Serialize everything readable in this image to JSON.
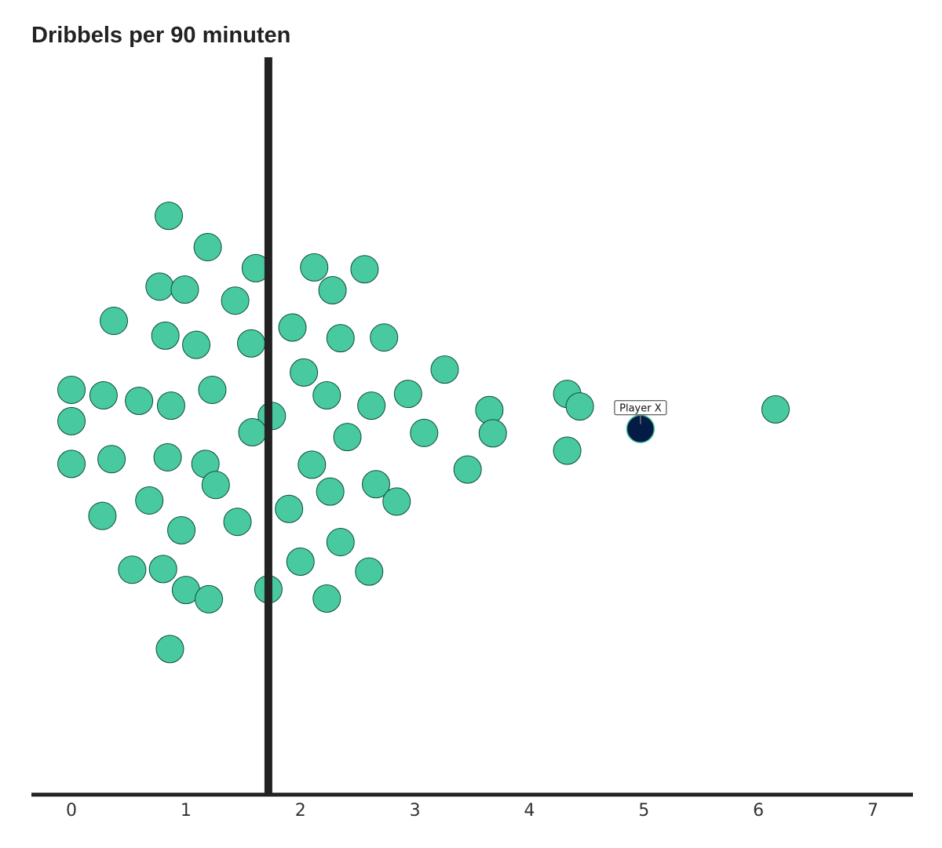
{
  "chart_data": {
    "type": "scatter",
    "title": "Dribbels per 90 minuten",
    "xlabel": "",
    "ylabel": "",
    "xlim": [
      -0.35,
      7.35
    ],
    "ylim": [
      -1.0,
      1.0
    ],
    "x_ticks": [
      0,
      1,
      2,
      3,
      4,
      5,
      6,
      7
    ],
    "grid": false,
    "reference_line": {
      "x": 1.72,
      "color": "#222222"
    },
    "colors": {
      "points": "#48c9a0",
      "point_stroke": "#0e4d3c",
      "highlight": "#041c45",
      "highlight_stroke": "#48c9a0",
      "axis": "#222222"
    },
    "series": [
      {
        "values": [
          {
            "x": 0.85,
            "y": 0.57
          },
          {
            "x": 1.19,
            "y": 0.485
          },
          {
            "x": 1.61,
            "y": 0.428
          },
          {
            "x": 2.12,
            "y": 0.43
          },
          {
            "x": 2.56,
            "y": 0.425
          },
          {
            "x": 0.77,
            "y": 0.378
          },
          {
            "x": 0.99,
            "y": 0.37
          },
          {
            "x": 2.28,
            "y": 0.368
          },
          {
            "x": 1.43,
            "y": 0.34
          },
          {
            "x": 0.37,
            "y": 0.285
          },
          {
            "x": 1.93,
            "y": 0.267
          },
          {
            "x": 0.82,
            "y": 0.245
          },
          {
            "x": 2.35,
            "y": 0.238
          },
          {
            "x": 2.73,
            "y": 0.24
          },
          {
            "x": 1.09,
            "y": 0.22
          },
          {
            "x": 1.57,
            "y": 0.224
          },
          {
            "x": 3.26,
            "y": 0.153
          },
          {
            "x": 2.03,
            "y": 0.145
          },
          {
            "x": 0.0,
            "y": 0.098
          },
          {
            "x": 1.23,
            "y": 0.098
          },
          {
            "x": 2.94,
            "y": 0.087
          },
          {
            "x": 4.33,
            "y": 0.087
          },
          {
            "x": 0.28,
            "y": 0.083
          },
          {
            "x": 2.23,
            "y": 0.083
          },
          {
            "x": 0.59,
            "y": 0.068
          },
          {
            "x": 4.44,
            "y": 0.053
          },
          {
            "x": 0.87,
            "y": 0.055
          },
          {
            "x": 2.62,
            "y": 0.055
          },
          {
            "x": 6.15,
            "y": 0.045
          },
          {
            "x": 3.65,
            "y": 0.043
          },
          {
            "x": 1.75,
            "y": 0.027
          },
          {
            "x": 0.0,
            "y": 0.013
          },
          {
            "x": 1.58,
            "y": -0.017
          },
          {
            "x": 3.08,
            "y": -0.019
          },
          {
            "x": 3.68,
            "y": -0.02
          },
          {
            "x": 2.41,
            "y": -0.03
          },
          {
            "x": 0.0,
            "y": -0.103
          },
          {
            "x": 0.35,
            "y": -0.09
          },
          {
            "x": 0.84,
            "y": -0.085
          },
          {
            "x": 4.33,
            "y": -0.067
          },
          {
            "x": 1.17,
            "y": -0.103
          },
          {
            "x": 2.1,
            "y": -0.105
          },
          {
            "x": 3.46,
            "y": -0.118
          },
          {
            "x": 1.26,
            "y": -0.16
          },
          {
            "x": 2.66,
            "y": -0.158
          },
          {
            "x": 0.68,
            "y": -0.202
          },
          {
            "x": 2.26,
            "y": -0.178
          },
          {
            "x": 2.84,
            "y": -0.205
          },
          {
            "x": 1.9,
            "y": -0.225
          },
          {
            "x": 0.27,
            "y": -0.244
          },
          {
            "x": 1.45,
            "y": -0.26
          },
          {
            "x": 0.96,
            "y": -0.283
          },
          {
            "x": 2.35,
            "y": -0.315
          },
          {
            "x": 2.0,
            "y": -0.368
          },
          {
            "x": 0.53,
            "y": -0.39
          },
          {
            "x": 0.8,
            "y": -0.388
          },
          {
            "x": 2.6,
            "y": -0.395
          },
          {
            "x": 1.0,
            "y": -0.445
          },
          {
            "x": 1.72,
            "y": -0.443
          },
          {
            "x": 1.2,
            "y": -0.47
          },
          {
            "x": 2.23,
            "y": -0.468
          },
          {
            "x": 0.86,
            "y": -0.605
          }
        ]
      }
    ],
    "highlight": {
      "label": "Player X",
      "x": 4.97,
      "y": -0.008
    }
  }
}
